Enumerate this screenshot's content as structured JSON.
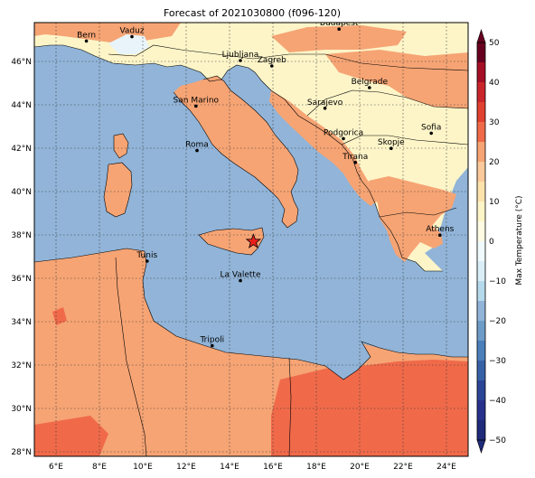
{
  "title": "Forecast of 2021030800 (f096-120)",
  "map": {
    "lon_range": [
      5,
      25
    ],
    "lat_range": [
      27.8,
      47.8
    ],
    "lon_ticks": [
      "6°E",
      "8°E",
      "10°E",
      "12°E",
      "14°E",
      "16°E",
      "18°E",
      "20°E",
      "22°E",
      "24°E"
    ],
    "lat_ticks": [
      "28°N",
      "30°N",
      "32°N",
      "34°N",
      "36°N",
      "38°N",
      "40°N",
      "42°N",
      "44°N",
      "46°N"
    ],
    "grid": "dotted",
    "colors": {
      "sea": "#91b4d8",
      "warm_land": "#f6a474",
      "mild_land": "#fdf5c8",
      "hot_land": "#f06a4a",
      "cold_patch": "#e8f4fa"
    }
  },
  "marker": {
    "label": "star",
    "lon": 15.1,
    "lat": 37.7,
    "color": "#e8201a"
  },
  "cities": [
    {
      "name": "Bern",
      "lon": 7.4,
      "lat": 46.95
    },
    {
      "name": "Vaduz",
      "lon": 9.5,
      "lat": 47.15
    },
    {
      "name": "Budapest",
      "lon": 19.05,
      "lat": 47.5
    },
    {
      "name": "Ljubljana",
      "lon": 14.5,
      "lat": 46.05
    },
    {
      "name": "Zagreb",
      "lon": 15.95,
      "lat": 45.8
    },
    {
      "name": "Belgrade",
      "lon": 20.45,
      "lat": 44.8
    },
    {
      "name": "San Marino",
      "lon": 12.45,
      "lat": 43.95
    },
    {
      "name": "Sarajevo",
      "lon": 18.4,
      "lat": 43.85
    },
    {
      "name": "Sofia",
      "lon": 23.3,
      "lat": 42.7
    },
    {
      "name": "Podgorica",
      "lon": 19.25,
      "lat": 42.45
    },
    {
      "name": "Skopje",
      "lon": 21.45,
      "lat": 42.0
    },
    {
      "name": "Roma",
      "lon": 12.5,
      "lat": 41.9
    },
    {
      "name": "Tirana",
      "lon": 19.8,
      "lat": 41.35
    },
    {
      "name": "Athens",
      "lon": 23.7,
      "lat": 38.0
    },
    {
      "name": "Tunis",
      "lon": 10.2,
      "lat": 36.8
    },
    {
      "name": "La Valette",
      "lon": 14.5,
      "lat": 35.9
    },
    {
      "name": "Tripoli",
      "lon": 13.2,
      "lat": 32.9
    }
  ],
  "colorbar": {
    "label": "Max Temperature (°C)",
    "ticks": [
      "50",
      "40",
      "30",
      "20",
      "10",
      "0",
      "−10",
      "−20",
      "−30",
      "−40",
      "−50"
    ],
    "range": [
      -50,
      50
    ],
    "step": 5,
    "colors_top_to_bottom": [
      "#67001f",
      "#a50f26",
      "#c9252b",
      "#e0402f",
      "#f06a4a",
      "#f6a474",
      "#fbc99b",
      "#fde2ac",
      "#fdf5c8",
      "#fdfbe3",
      "#f0f9fb",
      "#d9eef6",
      "#b6d9ec",
      "#91b4d8",
      "#6d9cc9",
      "#4a7fba",
      "#3661a7",
      "#2b4496",
      "#27318c",
      "#1f2a7a"
    ]
  }
}
